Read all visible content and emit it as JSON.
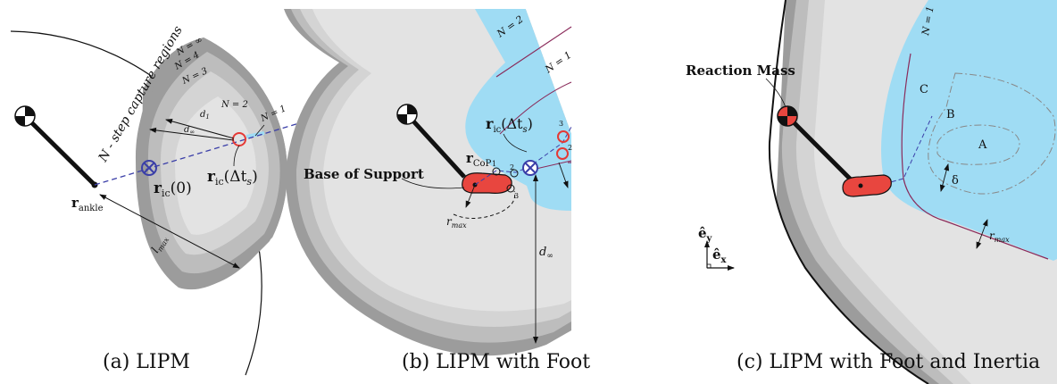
{
  "colors": {
    "region_dark": "#9c9c9c",
    "region_mid": "#bdbdbd",
    "region_light": "#d4d4d4",
    "region_core": "#e3e3e3",
    "capture_blue": "#9fdcf4",
    "foot_red": "#e8463f",
    "icp_blue": "#3b3fa8",
    "boundary_purple": "#8a2a5a"
  },
  "panel_a": {
    "caption": "(a) LIPM",
    "regions_label": "N - step capture regions",
    "n_inf": "N = ∞",
    "n4": "N = 4",
    "n3": "N = 3",
    "n2": "N = 2",
    "n1": "N = 1",
    "d1": "d",
    "d1_sub": "1",
    "dinf": "d",
    "dinf_sub": "∞",
    "ric_dt": "r",
    "ric_dt_sub": "ic",
    "ric_dt_arg": "(Δt",
    "ric_dt_arg_sub": "s",
    "ric_dt_close": ")",
    "ric0": "r",
    "ric0_sub": "ic",
    "ric0_arg": "(0)",
    "rankle": "r",
    "rankle_sub": "ankle",
    "lmax": "l",
    "lmax_sub": "max"
  },
  "panel_b": {
    "caption": "(b) LIPM with Foot",
    "base_label": "Base of Support",
    "n2": "N = 2",
    "n1": "N = 1",
    "rcop": "r",
    "rcop_sub": "CoP",
    "ric_dt": "r",
    "ric_dt_sub": "ic",
    "ric_dt_arg": "(Δt",
    "ric_dt_arg_sub": "s",
    "ric_dt_close": ")",
    "rmax": "r",
    "rmax_sub": "max",
    "d0": "d",
    "d0_sub": "0",
    "d0_eq": " = r",
    "d0_eq_sub": "max",
    "dinf": "d",
    "dinf_sub": "∞",
    "pt1": "1",
    "pt2": "2",
    "pt3": "3"
  },
  "panel_c": {
    "caption": "(c) LIPM with Foot and Inertia",
    "reaction_mass": "Reaction Mass",
    "n1": "N = 1",
    "label_a": "A",
    "label_b": "B",
    "label_c": "C",
    "delta": "δ",
    "rmax": "r",
    "rmax_sub": "max"
  },
  "axes": {
    "ey": "ê",
    "ey_sub": "y",
    "ex": "ê",
    "ex_sub": "x"
  }
}
